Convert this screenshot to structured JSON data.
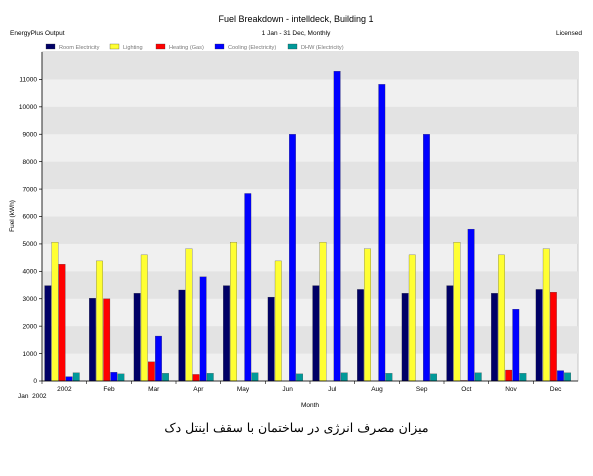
{
  "header": {
    "title": "Fuel Breakdown - intelldeck, Building 1",
    "subtitle": "1 Jan - 31 Dec, Monthly",
    "left_note": "EnergyPlus Output",
    "right_note": "Licensed"
  },
  "caption": "میزان مصرف انرژی در ساختمان با سقف اینتل دک",
  "chart_data": {
    "type": "bar",
    "title": "Fuel Breakdown - intelldeck, Building 1",
    "subtitle": "1 Jan - 31 Dec, Monthly",
    "xlabel": "Month",
    "ylabel": "Fuel (kWh)",
    "ylim": [
      0,
      12000
    ],
    "yticks": [
      0,
      1000,
      2000,
      3000,
      4000,
      5000,
      6000,
      7000,
      8000,
      9000,
      10000,
      11000
    ],
    "categories": [
      "2002",
      "Feb",
      "Mar",
      "Apr",
      "May",
      "Jun",
      "Jul",
      "Aug",
      "Sep",
      "Oct",
      "Nov",
      "Dec"
    ],
    "x_sublabel": "Jan  2002",
    "grid": true,
    "legend_placement": "top-left",
    "series": [
      {
        "name": "Room Electricity",
        "color": "#000066",
        "values": [
          3480,
          3020,
          3200,
          3320,
          3480,
          3060,
          3480,
          3340,
          3200,
          3480,
          3200,
          3340
        ]
      },
      {
        "name": "Lighting",
        "color": "#ffff33",
        "values": [
          5060,
          4380,
          4600,
          4820,
          5060,
          4380,
          5060,
          4820,
          4600,
          5060,
          4600,
          4820
        ]
      },
      {
        "name": "Heating (Gas)",
        "color": "#ff0000",
        "values": [
          4260,
          3000,
          700,
          240,
          0,
          0,
          0,
          0,
          0,
          20,
          400,
          3240
        ]
      },
      {
        "name": "Cooling (Electricity)",
        "color": "#0000ff",
        "values": [
          160,
          320,
          1640,
          3800,
          6840,
          9000,
          11300,
          10820,
          9000,
          5540,
          2620,
          380
        ]
      },
      {
        "name": "DHW (Electricity)",
        "color": "#009999",
        "values": [
          300,
          260,
          280,
          280,
          300,
          260,
          300,
          280,
          260,
          300,
          280,
          300
        ]
      }
    ]
  }
}
